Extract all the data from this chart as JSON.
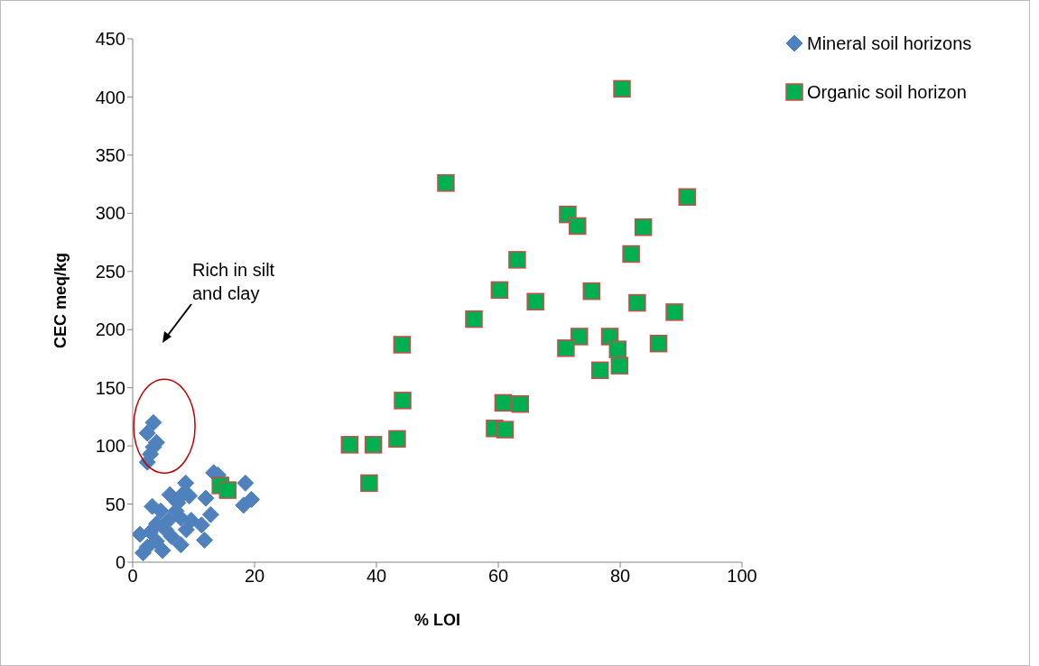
{
  "chart_data": {
    "type": "scatter",
    "xlabel": "% LOI",
    "ylabel": "CEC meq/kg",
    "xlim": [
      0,
      100
    ],
    "xticks": [
      0,
      20,
      40,
      60,
      80,
      100
    ],
    "ylim": [
      0,
      450
    ],
    "yticks": [
      0,
      50,
      100,
      150,
      200,
      250,
      300,
      350,
      400,
      450
    ],
    "grid": false,
    "legend": "top right",
    "annotations": [
      "Rich in silt and clay"
    ],
    "series": [
      {
        "name": "Mineral soil horizons",
        "color": "#4f81bd",
        "marker": "diamond",
        "x": [
          3.4,
          2.4,
          3.9,
          3.4,
          2.9,
          2.4,
          14.0,
          18.5,
          8.7,
          12.0,
          6.1,
          9.3,
          7.4,
          19.5,
          18.2,
          3.2,
          4.6,
          12.8,
          7.1,
          5.9,
          7.9,
          9.6,
          11.3,
          3.9,
          1.2,
          2.9,
          5.4,
          8.8,
          11.8,
          7.9,
          1.7,
          4.9,
          3.9,
          6.4,
          2.4,
          13.3,
          8.1
        ],
        "values": [
          120,
          111,
          103,
          99,
          93,
          86,
          75,
          68,
          68,
          55,
          58,
          57,
          51,
          54,
          49,
          48,
          44,
          41,
          44,
          36,
          38,
          36,
          32,
          33,
          24,
          26,
          28,
          28,
          19,
          15,
          8,
          10,
          18,
          22,
          13,
          77,
          58
        ]
      },
      {
        "name": "Organic soil horizon",
        "color": "#00b050",
        "marker": "square",
        "x": [
          80.3,
          51.4,
          91.0,
          71.4,
          73.0,
          83.8,
          81.8,
          63.1,
          60.2,
          75.3,
          66.1,
          82.8,
          88.9,
          56.0,
          44.2,
          73.3,
          78.3,
          71.1,
          79.6,
          86.3,
          79.9,
          76.7,
          44.3,
          60.8,
          63.6,
          59.4,
          61.1,
          43.4,
          35.6,
          39.5,
          38.8,
          14.4,
          15.6
        ],
        "values": [
          407,
          326,
          314,
          299,
          289,
          288,
          265,
          260,
          234,
          233,
          224,
          223,
          215,
          209,
          187,
          194,
          194,
          184,
          183,
          188,
          169,
          165,
          139,
          137,
          136,
          115,
          114,
          106,
          101,
          101,
          68,
          66,
          62
        ]
      }
    ]
  }
}
